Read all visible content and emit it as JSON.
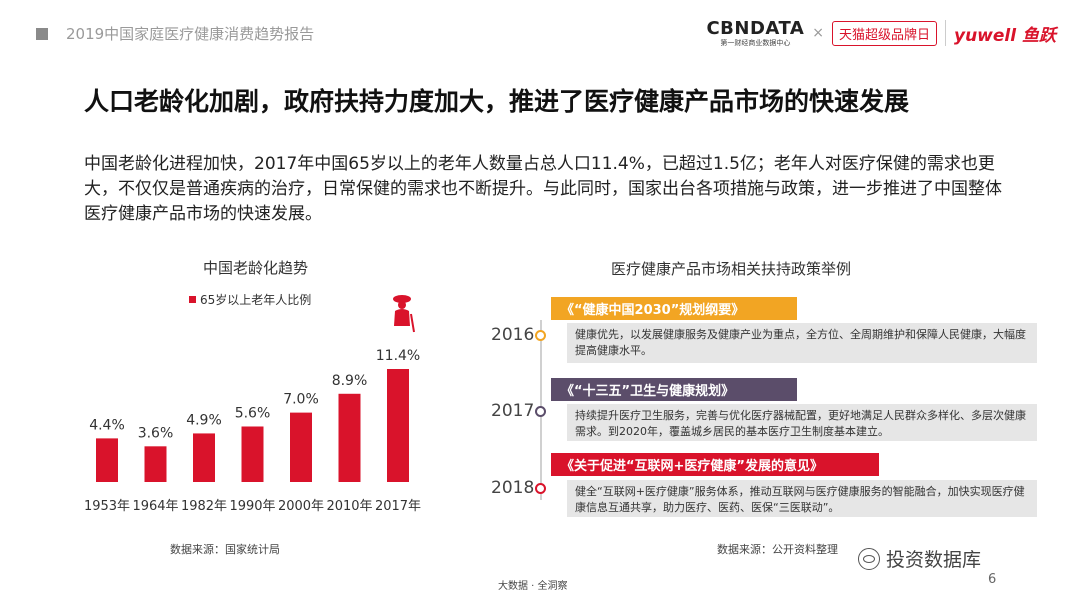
{
  "header": {
    "report_title": "2019中国家庭医疗健康消费趋势报告",
    "logos": {
      "cbn_main": "CBNDATA",
      "cbn_sub": "第一财经商业数据中心",
      "separator": "×",
      "tmall": "天猫超级品牌日",
      "yuwell": "yuwell 鱼跃"
    }
  },
  "main_title": "人口老龄化加剧，政府扶持力度加大，推进了医疗健康产品市场的快速发展",
  "intro": "中国老龄化进程加快，2017年中国65岁以上的老年人数量占总人口11.4%，已超过1.5亿；老年人对医疗保健的需求也更大，不仅仅是普通疾病的治疗，日常保健的需求也不断提升。与此同时，国家出台各项措施与政策，进一步推进了中国整体医疗健康产品市场的快速发展。",
  "chart_data": {
    "type": "bar",
    "title": "中国老龄化趋势",
    "categories": [
      "1953年",
      "1964年",
      "1982年",
      "1990年",
      "2000年",
      "2010年",
      "2017年"
    ],
    "series": [
      {
        "name": "65岁以上老年人比例",
        "values": [
          4.4,
          3.6,
          4.9,
          5.6,
          7.0,
          8.9,
          11.4
        ],
        "labels": [
          "4.4%",
          "3.6%",
          "4.9%",
          "5.6%",
          "7.0%",
          "8.9%",
          "11.4%"
        ]
      }
    ],
    "ylim": [
      0,
      11.4
    ],
    "grid": false,
    "legend_position": "top-left",
    "color": "#d9132b"
  },
  "chart_source": "数据来源：国家统计局",
  "policy": {
    "title": "医疗健康产品市场相关扶持政策举例",
    "items": [
      {
        "year": "2016",
        "name": "《“健康中国2030”规划纲要》",
        "desc": "健康优先，以发展健康服务及健康产业为重点，全方位、全周期维护和保障人民健康，大幅度提高健康水平。",
        "color": "#f2a523",
        "text_color": "#ffffff"
      },
      {
        "year": "2017",
        "name": "《“十三五”卫生与健康规划》",
        "desc": "持续提升医疗卫生服务，完善与优化医疗器械配置，更好地满足人民群众多样化、多层次健康需求。到2020年，覆盖城乡居民的基本医疗卫生制度基本建立。",
        "color": "#5b4d6a",
        "text_color": "#ffffff"
      },
      {
        "year": "2018",
        "name": "《关于促进“互联网+医疗健康”发展的意见》",
        "desc": "健全“互联网+医疗健康”服务体系，推动互联网与医疗健康服务的智能融合，加快实现医疗健康信息互通共享，助力医疗、医药、医保“三医联动”。",
        "color": "#d9132b",
        "text_color": "#ffffff"
      }
    ],
    "source": "数据来源：公开资料整理"
  },
  "footer": {
    "center": "大数据 · 全洞察",
    "page": "6",
    "watermark": "投资数据库"
  }
}
